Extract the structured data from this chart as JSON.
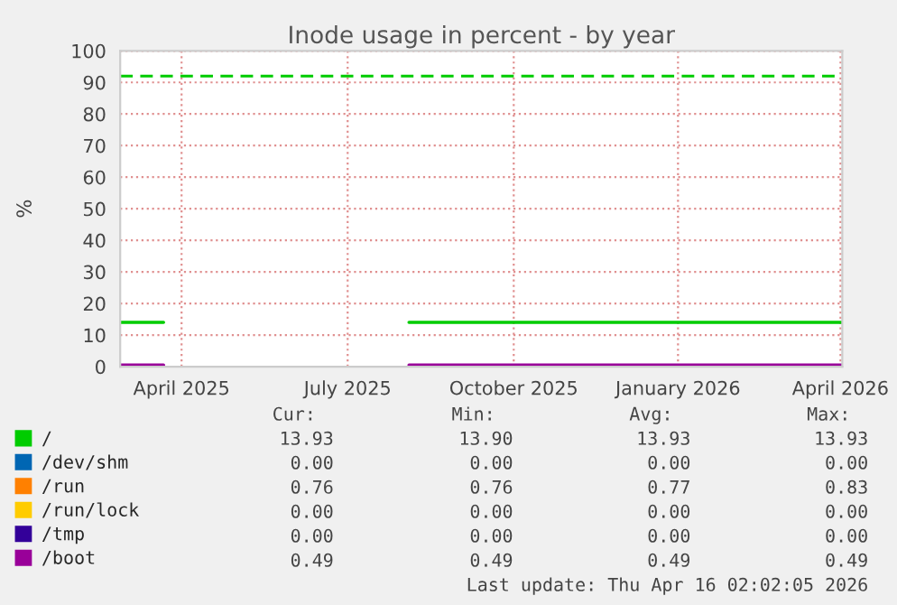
{
  "chart_data": {
    "type": "line",
    "title": "Inode usage in percent - by year",
    "ylabel": "%",
    "x": [
      "2025-03-12",
      "2025-04-05",
      "2025-04-06",
      "2025-08-19",
      "2026-04-16"
    ],
    "series": [
      {
        "name": "/",
        "color": "#00cc00",
        "values": [
          14,
          14,
          null,
          14,
          14
        ]
      },
      {
        "name": "/dev/shm",
        "color": "#0066b3",
        "values": [
          null,
          null,
          null,
          null,
          null
        ]
      },
      {
        "name": "/run",
        "color": "#ff8000",
        "values": [
          null,
          null,
          null,
          null,
          null
        ]
      },
      {
        "name": "/run/lock",
        "color": "#ffcc00",
        "values": [
          null,
          null,
          null,
          null,
          null
        ]
      },
      {
        "name": "/tmp",
        "color": "#330099",
        "values": [
          null,
          null,
          null,
          null,
          null
        ]
      },
      {
        "name": "/boot",
        "color": "#990099",
        "values": [
          0.5,
          0.5,
          null,
          0.5,
          0.5
        ]
      }
    ],
    "xlim": [
      "2025-03-12",
      "2026-04-16"
    ],
    "xticks": [
      {
        "value": "2025-04-15",
        "label": "April 2025"
      },
      {
        "value": "2025-07-16",
        "label": "July 2025"
      },
      {
        "value": "2025-10-16",
        "label": "October 2025"
      },
      {
        "value": "2026-01-15",
        "label": "January 2026"
      },
      {
        "value": "2026-04-15",
        "label": "April 2026"
      }
    ],
    "ylim": [
      0,
      100
    ],
    "yticks": [
      0,
      10,
      20,
      30,
      40,
      50,
      60,
      70,
      80,
      90,
      100
    ],
    "ref_lines": [
      {
        "axis": "y",
        "value": 92,
        "color": "#00cc00",
        "line_style": "dashed"
      }
    ],
    "grid": true,
    "legend": "bottom",
    "marker": "none",
    "line_style": "solid",
    "annotations": [
      "Cur:",
      "Min:",
      "Avg:",
      "Max:",
      "13.93",
      "13.90",
      "13.93",
      "13.93",
      "0.00",
      "0.00",
      "0.00",
      "0.00",
      "0.76",
      "0.76",
      "0.77",
      "0.83",
      "0.00",
      "0.00",
      "0.00",
      "0.00",
      "0.00",
      "0.00",
      "0.00",
      "0.00",
      "0.49",
      "0.49",
      "0.49",
      "0.49",
      "Last update: Thu Apr 16 02:02:05 2026"
    ]
  }
}
